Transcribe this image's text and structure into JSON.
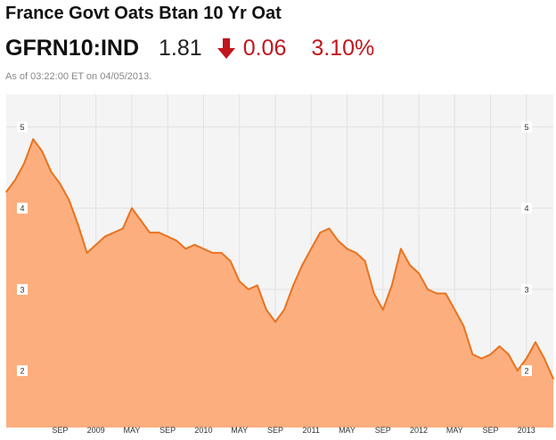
{
  "header": {
    "title": "France Govt Oats Btan 10 Yr Oat",
    "ticker": "GFRN10:IND",
    "price": "1.81",
    "change": "0.06",
    "change_pct": "3.10%",
    "direction_icon": "down-arrow-icon",
    "as_of": "As of 03:22:00 ET on 04/05/2013."
  },
  "colors": {
    "line": "#e8731f",
    "area": "#fcae7e",
    "negative": "#c0161d",
    "plot_background": "#f4f4f4",
    "grid": "#e2e2e2"
  },
  "chart_data": {
    "type": "area",
    "title": "",
    "xlabel": "",
    "ylabel": "",
    "ylim": [
      1.3,
      5.4
    ],
    "xlim": [
      "2008-03",
      "2013-04"
    ],
    "y_ticks": [
      2,
      3,
      4,
      5
    ],
    "y_tick_labels": [
      "2",
      "3",
      "4",
      "5"
    ],
    "y_axis_labels_both_sides": true,
    "x_ticks": [
      {
        "x": "2008-09",
        "label": "SEP"
      },
      {
        "x": "2009-01",
        "label": "2009"
      },
      {
        "x": "2009-05",
        "label": "MAY"
      },
      {
        "x": "2009-09",
        "label": "SEP"
      },
      {
        "x": "2010-01",
        "label": "2010"
      },
      {
        "x": "2010-05",
        "label": "MAY"
      },
      {
        "x": "2010-09",
        "label": "SEP"
      },
      {
        "x": "2011-01",
        "label": "2011"
      },
      {
        "x": "2011-05",
        "label": "MAY"
      },
      {
        "x": "2011-09",
        "label": "SEP"
      },
      {
        "x": "2012-01",
        "label": "2012"
      },
      {
        "x": "2012-05",
        "label": "MAY"
      },
      {
        "x": "2012-09",
        "label": "SEP"
      },
      {
        "x": "2013-01",
        "label": "2013"
      }
    ],
    "grid": true,
    "legend": "none",
    "series": [
      {
        "x": [
          "2008-03",
          "2008-04",
          "2008-05",
          "2008-06",
          "2008-07",
          "2008-08",
          "2008-09",
          "2008-10",
          "2008-11",
          "2008-12",
          "2009-01",
          "2009-02",
          "2009-03",
          "2009-04",
          "2009-05",
          "2009-06",
          "2009-07",
          "2009-08",
          "2009-09",
          "2009-10",
          "2009-11",
          "2009-12",
          "2010-01",
          "2010-02",
          "2010-03",
          "2010-04",
          "2010-05",
          "2010-06",
          "2010-07",
          "2010-08",
          "2010-09",
          "2010-10",
          "2010-11",
          "2010-12",
          "2011-01",
          "2011-02",
          "2011-03",
          "2011-04",
          "2011-05",
          "2011-06",
          "2011-07",
          "2011-08",
          "2011-09",
          "2011-10",
          "2011-11",
          "2011-12",
          "2012-01",
          "2012-02",
          "2012-03",
          "2012-04",
          "2012-05",
          "2012-06",
          "2012-07",
          "2012-08",
          "2012-09",
          "2012-10",
          "2012-11",
          "2012-12",
          "2013-01",
          "2013-02",
          "2013-03",
          "2013-04"
        ],
        "values": [
          4.2,
          4.35,
          4.55,
          4.85,
          4.7,
          4.45,
          4.3,
          4.1,
          3.8,
          3.45,
          3.55,
          3.65,
          3.7,
          3.75,
          4.0,
          3.85,
          3.7,
          3.7,
          3.65,
          3.6,
          3.5,
          3.55,
          3.5,
          3.45,
          3.45,
          3.35,
          3.1,
          3.0,
          3.05,
          2.75,
          2.6,
          2.75,
          3.05,
          3.3,
          3.5,
          3.7,
          3.75,
          3.6,
          3.5,
          3.45,
          3.35,
          2.95,
          2.75,
          3.05,
          3.5,
          3.3,
          3.2,
          3.0,
          2.95,
          2.95,
          2.75,
          2.55,
          2.2,
          2.15,
          2.2,
          2.3,
          2.2,
          2.0,
          2.15,
          2.35,
          2.15,
          1.9
        ]
      }
    ]
  }
}
